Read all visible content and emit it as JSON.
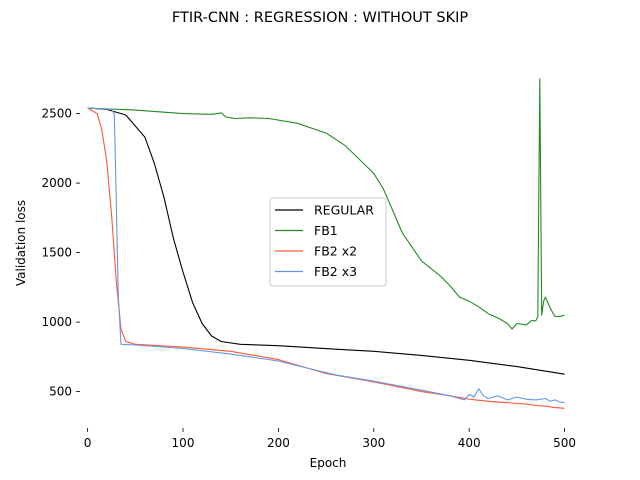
{
  "chart_data": {
    "type": "line",
    "title": "FTIR-CNN : REGRESSION : WITHOUT SKIP",
    "xlabel": "Epoch",
    "ylabel": "Validation loss",
    "xlim": [
      -8,
      512
    ],
    "ylim": [
      238,
      2900
    ],
    "xticks": [
      0,
      100,
      200,
      300,
      400,
      500
    ],
    "yticks": [
      500,
      1000,
      1500,
      2000,
      2500
    ],
    "grid": false,
    "legend_position": "center",
    "series": [
      {
        "name": "REGULAR",
        "color": "#000000",
        "points": [
          [
            0,
            2540
          ],
          [
            20,
            2530
          ],
          [
            40,
            2490
          ],
          [
            60,
            2330
          ],
          [
            70,
            2140
          ],
          [
            80,
            1900
          ],
          [
            90,
            1600
          ],
          [
            100,
            1360
          ],
          [
            110,
            1140
          ],
          [
            120,
            990
          ],
          [
            130,
            900
          ],
          [
            140,
            860
          ],
          [
            160,
            840
          ],
          [
            200,
            830
          ],
          [
            260,
            805
          ],
          [
            300,
            790
          ],
          [
            350,
            760
          ],
          [
            400,
            725
          ],
          [
            450,
            680
          ],
          [
            500,
            625
          ]
        ]
      },
      {
        "name": "FB1",
        "color": "#228b22",
        "points": [
          [
            0,
            2540
          ],
          [
            50,
            2525
          ],
          [
            100,
            2500
          ],
          [
            130,
            2495
          ],
          [
            140,
            2505
          ],
          [
            145,
            2475
          ],
          [
            155,
            2465
          ],
          [
            170,
            2470
          ],
          [
            190,
            2465
          ],
          [
            220,
            2430
          ],
          [
            250,
            2360
          ],
          [
            270,
            2270
          ],
          [
            300,
            2070
          ],
          [
            310,
            1960
          ],
          [
            320,
            1800
          ],
          [
            330,
            1640
          ],
          [
            350,
            1440
          ],
          [
            370,
            1330
          ],
          [
            380,
            1260
          ],
          [
            390,
            1180
          ],
          [
            400,
            1150
          ],
          [
            410,
            1110
          ],
          [
            420,
            1060
          ],
          [
            430,
            1030
          ],
          [
            440,
            990
          ],
          [
            445,
            950
          ],
          [
            450,
            990
          ],
          [
            460,
            980
          ],
          [
            465,
            1010
          ],
          [
            470,
            1010
          ],
          [
            472,
            1040
          ],
          [
            474,
            2750
          ],
          [
            476,
            1050
          ],
          [
            478,
            1150
          ],
          [
            480,
            1180
          ],
          [
            485,
            1100
          ],
          [
            490,
            1040
          ],
          [
            495,
            1040
          ],
          [
            500,
            1050
          ]
        ]
      },
      {
        "name": "FB2 x2",
        "color": "#ff5733",
        "points": [
          [
            0,
            2540
          ],
          [
            10,
            2500
          ],
          [
            15,
            2380
          ],
          [
            20,
            2160
          ],
          [
            25,
            1780
          ],
          [
            30,
            1300
          ],
          [
            35,
            950
          ],
          [
            40,
            860
          ],
          [
            50,
            840
          ],
          [
            100,
            820
          ],
          [
            150,
            790
          ],
          [
            200,
            730
          ],
          [
            250,
            630
          ],
          [
            300,
            570
          ],
          [
            350,
            500
          ],
          [
            380,
            470
          ],
          [
            400,
            445
          ],
          [
            420,
            430
          ],
          [
            440,
            420
          ],
          [
            460,
            410
          ],
          [
            470,
            400
          ],
          [
            480,
            395
          ],
          [
            490,
            385
          ],
          [
            500,
            380
          ]
        ]
      },
      {
        "name": "FB2 x3",
        "color": "#6495ed",
        "points": [
          [
            0,
            2540
          ],
          [
            25,
            2530
          ],
          [
            28,
            2500
          ],
          [
            30,
            1900
          ],
          [
            32,
            1200
          ],
          [
            35,
            840
          ],
          [
            50,
            835
          ],
          [
            100,
            810
          ],
          [
            150,
            770
          ],
          [
            200,
            720
          ],
          [
            230,
            670
          ],
          [
            260,
            620
          ],
          [
            300,
            575
          ],
          [
            350,
            510
          ],
          [
            380,
            470
          ],
          [
            395,
            440
          ],
          [
            400,
            480
          ],
          [
            405,
            460
          ],
          [
            410,
            520
          ],
          [
            415,
            470
          ],
          [
            420,
            450
          ],
          [
            430,
            470
          ],
          [
            440,
            440
          ],
          [
            450,
            460
          ],
          [
            460,
            445
          ],
          [
            470,
            440
          ],
          [
            480,
            450
          ],
          [
            485,
            430
          ],
          [
            490,
            440
          ],
          [
            495,
            425
          ],
          [
            500,
            420
          ]
        ]
      }
    ]
  }
}
